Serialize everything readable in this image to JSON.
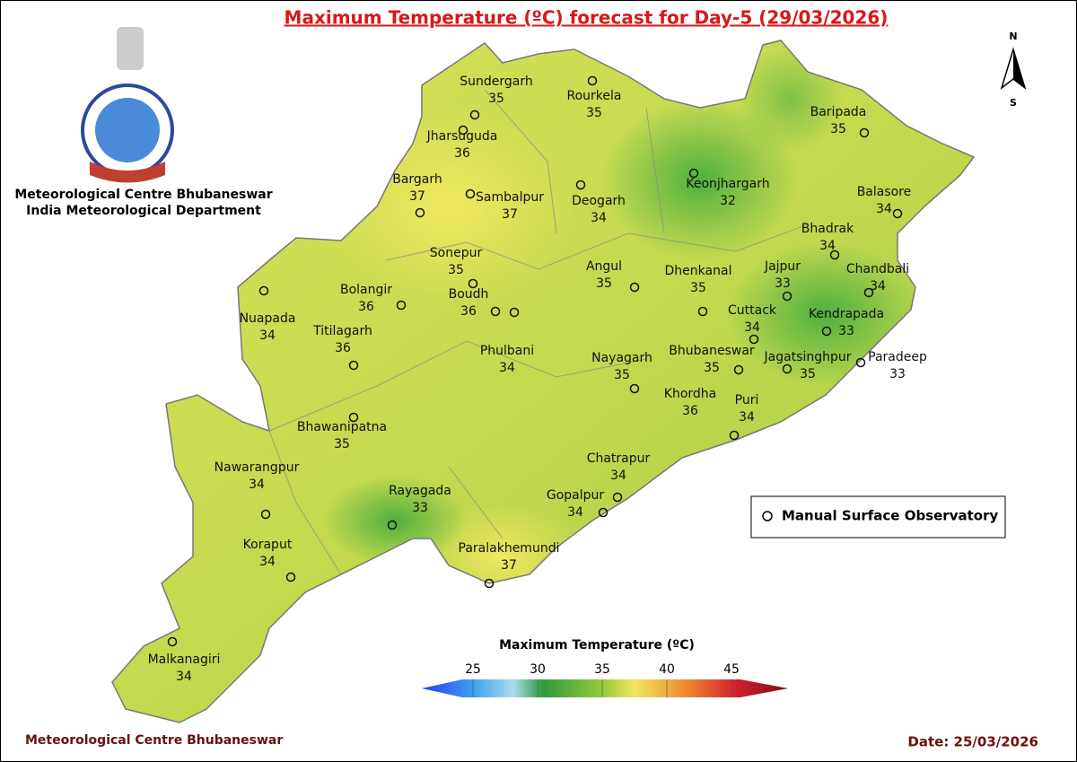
{
  "header": {
    "title": "Maximum Temperature (ºC) forecast for Day-5 (29/03/2026)",
    "organization": [
      "Meteorological Centre Bhubaneswar",
      "India Meteorological Department"
    ]
  },
  "compass": {
    "north": "N",
    "south": "S"
  },
  "stations": [
    {
      "name": "Sundergarh",
      "value": 35
    },
    {
      "name": "Rourkela",
      "value": 35
    },
    {
      "name": "Jharsuguda",
      "value": 36
    },
    {
      "name": "Baripada",
      "value": 35
    },
    {
      "name": "Bargarh",
      "value": 37
    },
    {
      "name": "Sambalpur",
      "value": 37
    },
    {
      "name": "Deogarh",
      "value": 34
    },
    {
      "name": "Keonjhargarh",
      "value": 32
    },
    {
      "name": "Balasore",
      "value": 34
    },
    {
      "name": "Bhadrak",
      "value": 34
    },
    {
      "name": "Sonepur",
      "value": 35
    },
    {
      "name": "Chandbali",
      "value": 34
    },
    {
      "name": "Bolangir",
      "value": 36
    },
    {
      "name": "Angul",
      "value": 35
    },
    {
      "name": "Dhenkanal",
      "value": 35
    },
    {
      "name": "Jajpur",
      "value": 33
    },
    {
      "name": "Nuapada",
      "value": 34
    },
    {
      "name": "Boudh",
      "value": 36
    },
    {
      "name": "Cuttack",
      "value": 34
    },
    {
      "name": "Kendrapada",
      "value": 33
    },
    {
      "name": "Titilagarh",
      "value": 36
    },
    {
      "name": "Phulbani",
      "value": 34
    },
    {
      "name": "Bhubaneswar",
      "value": 35
    },
    {
      "name": "Jagatsinghpur",
      "value": 35
    },
    {
      "name": "Paradeep",
      "value": 33
    },
    {
      "name": "Nayagarh",
      "value": 35
    },
    {
      "name": "Khordha",
      "value": 36
    },
    {
      "name": "Puri",
      "value": 34
    },
    {
      "name": "Bhawanipatna",
      "value": 35
    },
    {
      "name": "Chatrapur",
      "value": 34
    },
    {
      "name": "Nawarangpur",
      "value": 34
    },
    {
      "name": "Rayagada",
      "value": 33
    },
    {
      "name": "Gopalpur",
      "value": 34
    },
    {
      "name": "Koraput",
      "value": 34
    },
    {
      "name": "Paralakhemundi",
      "value": 37
    },
    {
      "name": "Malkanagiri",
      "value": 34
    }
  ],
  "legend": {
    "label": "Manual Surface Observatory"
  },
  "colorbar": {
    "title": "Maximum Temperature (ºC)",
    "ticks": [
      25,
      30,
      35,
      40,
      45
    ]
  },
  "footer": {
    "left": "Meteorological Centre Bhubaneswar",
    "right": "Date: 25/03/2026"
  }
}
